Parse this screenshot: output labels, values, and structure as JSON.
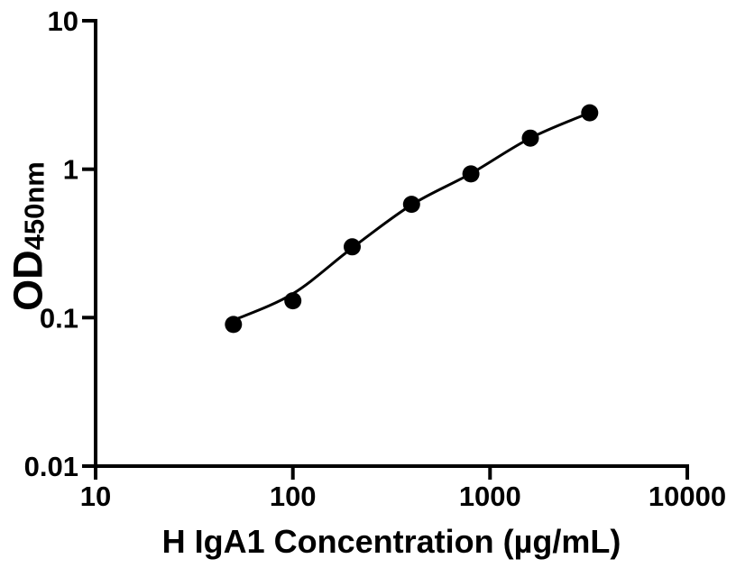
{
  "figure": {
    "background_color": "#ffffff",
    "foreground_color": "#000000"
  },
  "chart_data": {
    "type": "scatter",
    "title": "",
    "xlabel": "H IgA1 Concentration (µg/mL)",
    "ylabel_main": "OD",
    "ylabel_sub": "450nm",
    "x_scale": "log10",
    "y_scale": "log10",
    "xlim": [
      10,
      10000
    ],
    "ylim": [
      0.01,
      10
    ],
    "x_tick_values": [
      10,
      100,
      1000,
      10000
    ],
    "x_tick_labels": [
      "10",
      "100",
      "1000",
      "10000"
    ],
    "y_tick_values": [
      0.01,
      0.1,
      1,
      10
    ],
    "y_tick_labels": [
      "0.01",
      "0.1",
      "1",
      "10"
    ],
    "grid": false,
    "legend": null,
    "series": [
      {
        "marker": "filled-circle",
        "color": "#000000",
        "x": [
          50,
          100,
          200,
          400,
          800,
          1600,
          3200
        ],
        "y": [
          0.09,
          0.13,
          0.3,
          0.58,
          0.93,
          1.62,
          2.4
        ]
      }
    ],
    "fit_curve": {
      "color": "#000000",
      "x": [
        50,
        100,
        200,
        400,
        800,
        1600,
        3200
      ],
      "y": [
        0.096,
        0.145,
        0.295,
        0.575,
        0.935,
        1.62,
        2.4
      ]
    }
  }
}
